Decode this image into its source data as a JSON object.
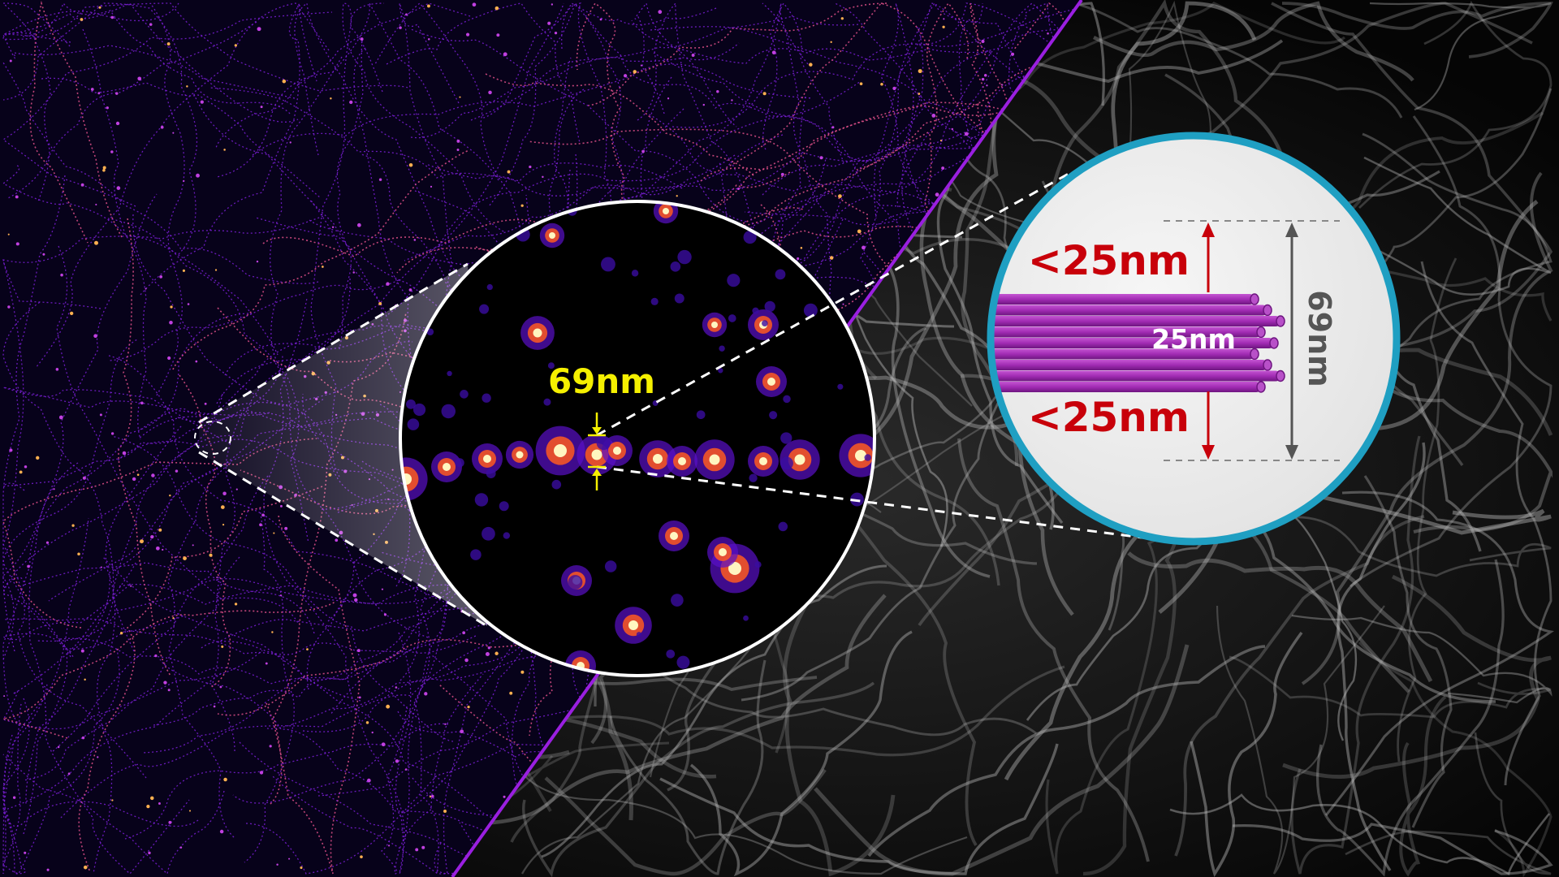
{
  "zoom_label": "69nm",
  "schematic": {
    "top_gap_label": "<25nm",
    "bundle_label": "25nm",
    "bottom_gap_label": "<25nm",
    "total_label": "69nm"
  },
  "colors": {
    "left_panel_filaments": "#7a1fd6",
    "divider": "#9a1fe0",
    "zoom_label": "#f5f000",
    "gap_label": "#c8000a",
    "bundle": "#a22cb4",
    "inset_border": "#1f9fc2",
    "total_label": "#555555"
  }
}
